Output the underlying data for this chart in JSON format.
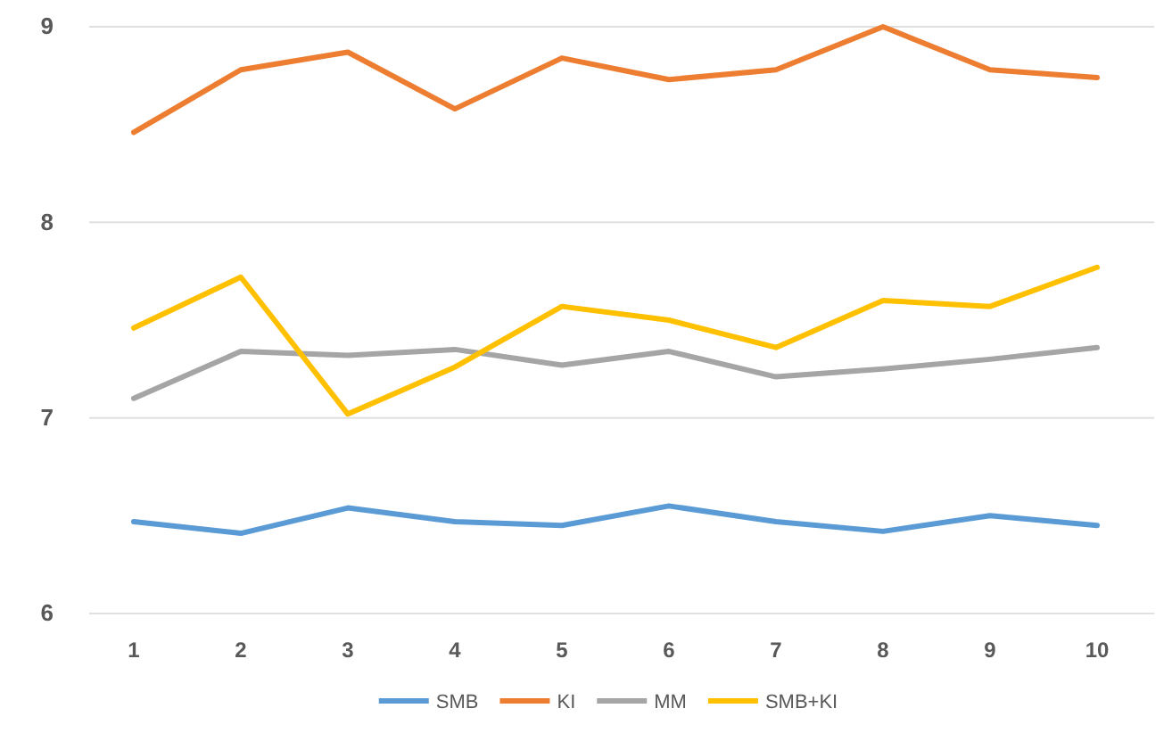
{
  "chart_data": {
    "type": "line",
    "categories": [
      "1",
      "2",
      "3",
      "4",
      "5",
      "6",
      "7",
      "8",
      "9",
      "10"
    ],
    "series": [
      {
        "name": "SMB",
        "color": "#5b9bd5",
        "values": [
          6.47,
          6.41,
          6.54,
          6.47,
          6.45,
          6.55,
          6.47,
          6.42,
          6.5,
          6.45
        ]
      },
      {
        "name": "KI",
        "color": "#ed7d31",
        "values": [
          8.46,
          8.78,
          8.87,
          8.58,
          8.84,
          8.73,
          8.78,
          9.0,
          8.78,
          8.74
        ]
      },
      {
        "name": "MM",
        "color": "#a5a5a5",
        "values": [
          7.1,
          7.34,
          7.32,
          7.35,
          7.27,
          7.34,
          7.21,
          7.25,
          7.3,
          7.36
        ]
      },
      {
        "name": "SMB+KI",
        "color": "#ffc000",
        "values": [
          7.46,
          7.72,
          7.02,
          7.26,
          7.57,
          7.5,
          7.36,
          7.6,
          7.57,
          7.77
        ]
      }
    ],
    "ylim": [
      6,
      9
    ],
    "yticks": [
      6,
      7,
      8,
      9
    ],
    "grid": "y",
    "legend": "bottom",
    "marker": "none",
    "line_style": "solid"
  }
}
